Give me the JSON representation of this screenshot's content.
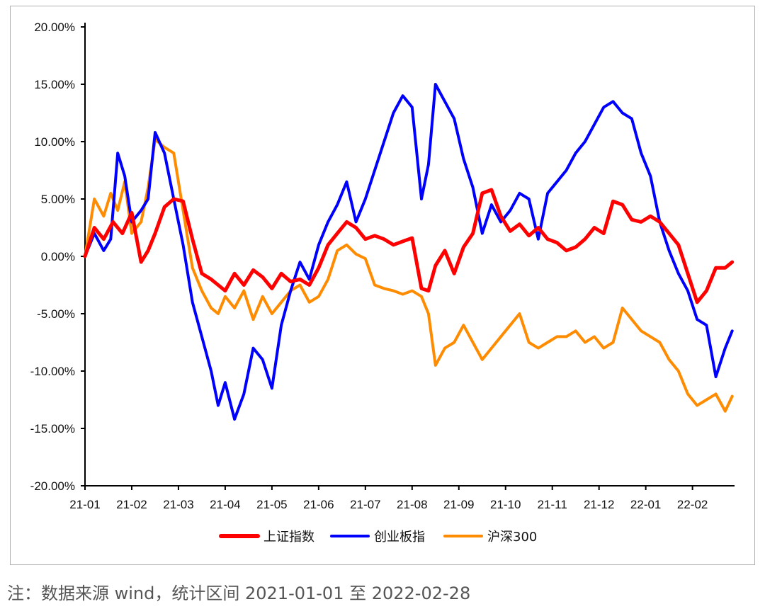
{
  "chart_data": {
    "type": "line",
    "title": "",
    "xlabel": "",
    "ylabel": "",
    "ylim": [
      -20,
      20
    ],
    "yticks": [
      "20.00%",
      "15.00%",
      "10.00%",
      "5.00%",
      "0.00%",
      "-5.00%",
      "-10.00%",
      "-15.00%",
      "-20.00%"
    ],
    "ytick_values": [
      20,
      15,
      10,
      5,
      0,
      -5,
      -10,
      -15,
      -20
    ],
    "xlim": [
      0,
      13.9
    ],
    "categories": [
      "21-01",
      "21-02",
      "21-03",
      "21-04",
      "21-05",
      "21-06",
      "21-07",
      "21-08",
      "21-09",
      "21-10",
      "21-11",
      "21-12",
      "22-01",
      "22-02"
    ],
    "legend_position": "bottom-center",
    "series": [
      {
        "name": "上证指数",
        "color": "#ff0000",
        "x": [
          0,
          0.2,
          0.4,
          0.6,
          0.8,
          1.0,
          1.2,
          1.35,
          1.5,
          1.7,
          1.9,
          2.1,
          2.3,
          2.5,
          2.7,
          2.85,
          3.0,
          3.2,
          3.4,
          3.6,
          3.8,
          4.0,
          4.2,
          4.4,
          4.6,
          4.8,
          5.0,
          5.2,
          5.4,
          5.6,
          5.8,
          6.0,
          6.2,
          6.4,
          6.6,
          6.8,
          7.0,
          7.2,
          7.35,
          7.5,
          7.7,
          7.9,
          8.1,
          8.3,
          8.5,
          8.7,
          8.9,
          9.1,
          9.3,
          9.5,
          9.7,
          9.9,
          10.1,
          10.3,
          10.5,
          10.7,
          10.9,
          11.1,
          11.3,
          11.5,
          11.7,
          11.9,
          12.1,
          12.3,
          12.5,
          12.7,
          12.9,
          13.1,
          13.3,
          13.5,
          13.7,
          13.85
        ],
        "values": [
          0.0,
          2.5,
          1.5,
          3.0,
          2.0,
          3.8,
          -0.5,
          0.5,
          2.0,
          4.3,
          5.0,
          4.8,
          1.5,
          -1.5,
          -2.0,
          -2.5,
          -3.0,
          -1.5,
          -2.5,
          -1.2,
          -1.8,
          -2.8,
          -1.5,
          -2.2,
          -2.0,
          -2.5,
          -1.0,
          1.0,
          2.0,
          3.0,
          2.5,
          1.5,
          1.8,
          1.5,
          1.0,
          1.3,
          1.6,
          -2.8,
          -3.0,
          -0.8,
          0.5,
          -1.5,
          0.8,
          2.0,
          5.5,
          5.8,
          3.5,
          2.2,
          2.8,
          1.8,
          2.5,
          1.5,
          1.2,
          0.5,
          0.8,
          1.5,
          2.5,
          2.0,
          4.8,
          4.5,
          3.2,
          3.0,
          3.5,
          3.0,
          2.0,
          1.0,
          -1.5,
          -4.0,
          -3.0,
          -1.0,
          -1.0,
          -0.5
        ]
      },
      {
        "name": "创业板指",
        "color": "#0000ff",
        "x": [
          0,
          0.2,
          0.4,
          0.55,
          0.7,
          0.85,
          1.0,
          1.2,
          1.35,
          1.5,
          1.7,
          1.9,
          2.1,
          2.3,
          2.5,
          2.7,
          2.85,
          3.0,
          3.2,
          3.4,
          3.6,
          3.8,
          4.0,
          4.2,
          4.4,
          4.6,
          4.8,
          5.0,
          5.2,
          5.4,
          5.6,
          5.8,
          6.0,
          6.2,
          6.4,
          6.6,
          6.8,
          7.0,
          7.2,
          7.35,
          7.5,
          7.7,
          7.9,
          8.1,
          8.3,
          8.5,
          8.7,
          8.9,
          9.1,
          9.3,
          9.5,
          9.7,
          9.9,
          10.1,
          10.3,
          10.5,
          10.7,
          10.9,
          11.1,
          11.3,
          11.5,
          11.7,
          11.9,
          12.1,
          12.3,
          12.5,
          12.7,
          12.9,
          13.1,
          13.3,
          13.5,
          13.7,
          13.85
        ],
        "values": [
          0.0,
          2.0,
          0.5,
          1.5,
          9.0,
          7.0,
          3.0,
          4.0,
          5.0,
          10.8,
          9.0,
          5.0,
          1.0,
          -4.0,
          -7.0,
          -10.0,
          -13.0,
          -11.0,
          -14.2,
          -12.0,
          -8.0,
          -9.0,
          -11.5,
          -6.0,
          -3.0,
          -0.5,
          -2.0,
          1.0,
          3.0,
          4.5,
          6.5,
          3.0,
          5.0,
          7.5,
          10.0,
          12.5,
          14.0,
          13.0,
          5.0,
          8.0,
          15.0,
          13.5,
          12.0,
          8.5,
          6.0,
          2.0,
          4.5,
          3.0,
          4.0,
          5.5,
          5.0,
          1.5,
          5.5,
          6.5,
          7.5,
          9.0,
          10.0,
          11.5,
          13.0,
          13.5,
          12.5,
          12.0,
          9.0,
          7.0,
          3.0,
          0.5,
          -1.5,
          -3.0,
          -5.5,
          -6.0,
          -10.5,
          -8.0,
          -6.5
        ]
      },
      {
        "name": "沪深300",
        "color": "#ff8c00",
        "x": [
          0,
          0.2,
          0.4,
          0.55,
          0.7,
          0.85,
          1.0,
          1.2,
          1.35,
          1.5,
          1.7,
          1.9,
          2.1,
          2.3,
          2.5,
          2.7,
          2.85,
          3.0,
          3.2,
          3.4,
          3.6,
          3.8,
          4.0,
          4.2,
          4.4,
          4.6,
          4.8,
          5.0,
          5.2,
          5.4,
          5.6,
          5.8,
          6.0,
          6.2,
          6.4,
          6.6,
          6.8,
          7.0,
          7.2,
          7.35,
          7.5,
          7.7,
          7.9,
          8.1,
          8.3,
          8.5,
          8.7,
          8.9,
          9.1,
          9.3,
          9.5,
          9.7,
          9.9,
          10.1,
          10.3,
          10.5,
          10.7,
          10.9,
          11.1,
          11.3,
          11.5,
          11.7,
          11.9,
          12.1,
          12.3,
          12.5,
          12.7,
          12.9,
          13.1,
          13.3,
          13.5,
          13.7,
          13.85
        ],
        "values": [
          0.0,
          5.0,
          3.5,
          5.5,
          4.0,
          6.5,
          2.0,
          3.0,
          6.0,
          10.2,
          9.5,
          9.0,
          4.0,
          -1.0,
          -3.0,
          -4.5,
          -5.0,
          -3.5,
          -4.5,
          -3.0,
          -5.5,
          -3.5,
          -5.0,
          -4.0,
          -3.0,
          -2.5,
          -4.0,
          -3.5,
          -2.0,
          0.5,
          1.0,
          0.2,
          -0.2,
          -2.5,
          -2.8,
          -3.0,
          -3.3,
          -3.0,
          -3.5,
          -5.0,
          -9.5,
          -8.0,
          -7.5,
          -6.0,
          -7.5,
          -9.0,
          -8.0,
          -7.0,
          -6.0,
          -5.0,
          -7.5,
          -8.0,
          -7.5,
          -7.0,
          -7.0,
          -6.5,
          -7.5,
          -7.0,
          -8.0,
          -7.5,
          -4.5,
          -5.5,
          -6.5,
          -7.0,
          -7.5,
          -9.0,
          -10.0,
          -12.0,
          -13.0,
          -12.5,
          -12.0,
          -13.5,
          -12.2
        ]
      }
    ]
  },
  "note": "注：数据来源 wind，统计区间 2021-01-01 至 2022-02-28"
}
